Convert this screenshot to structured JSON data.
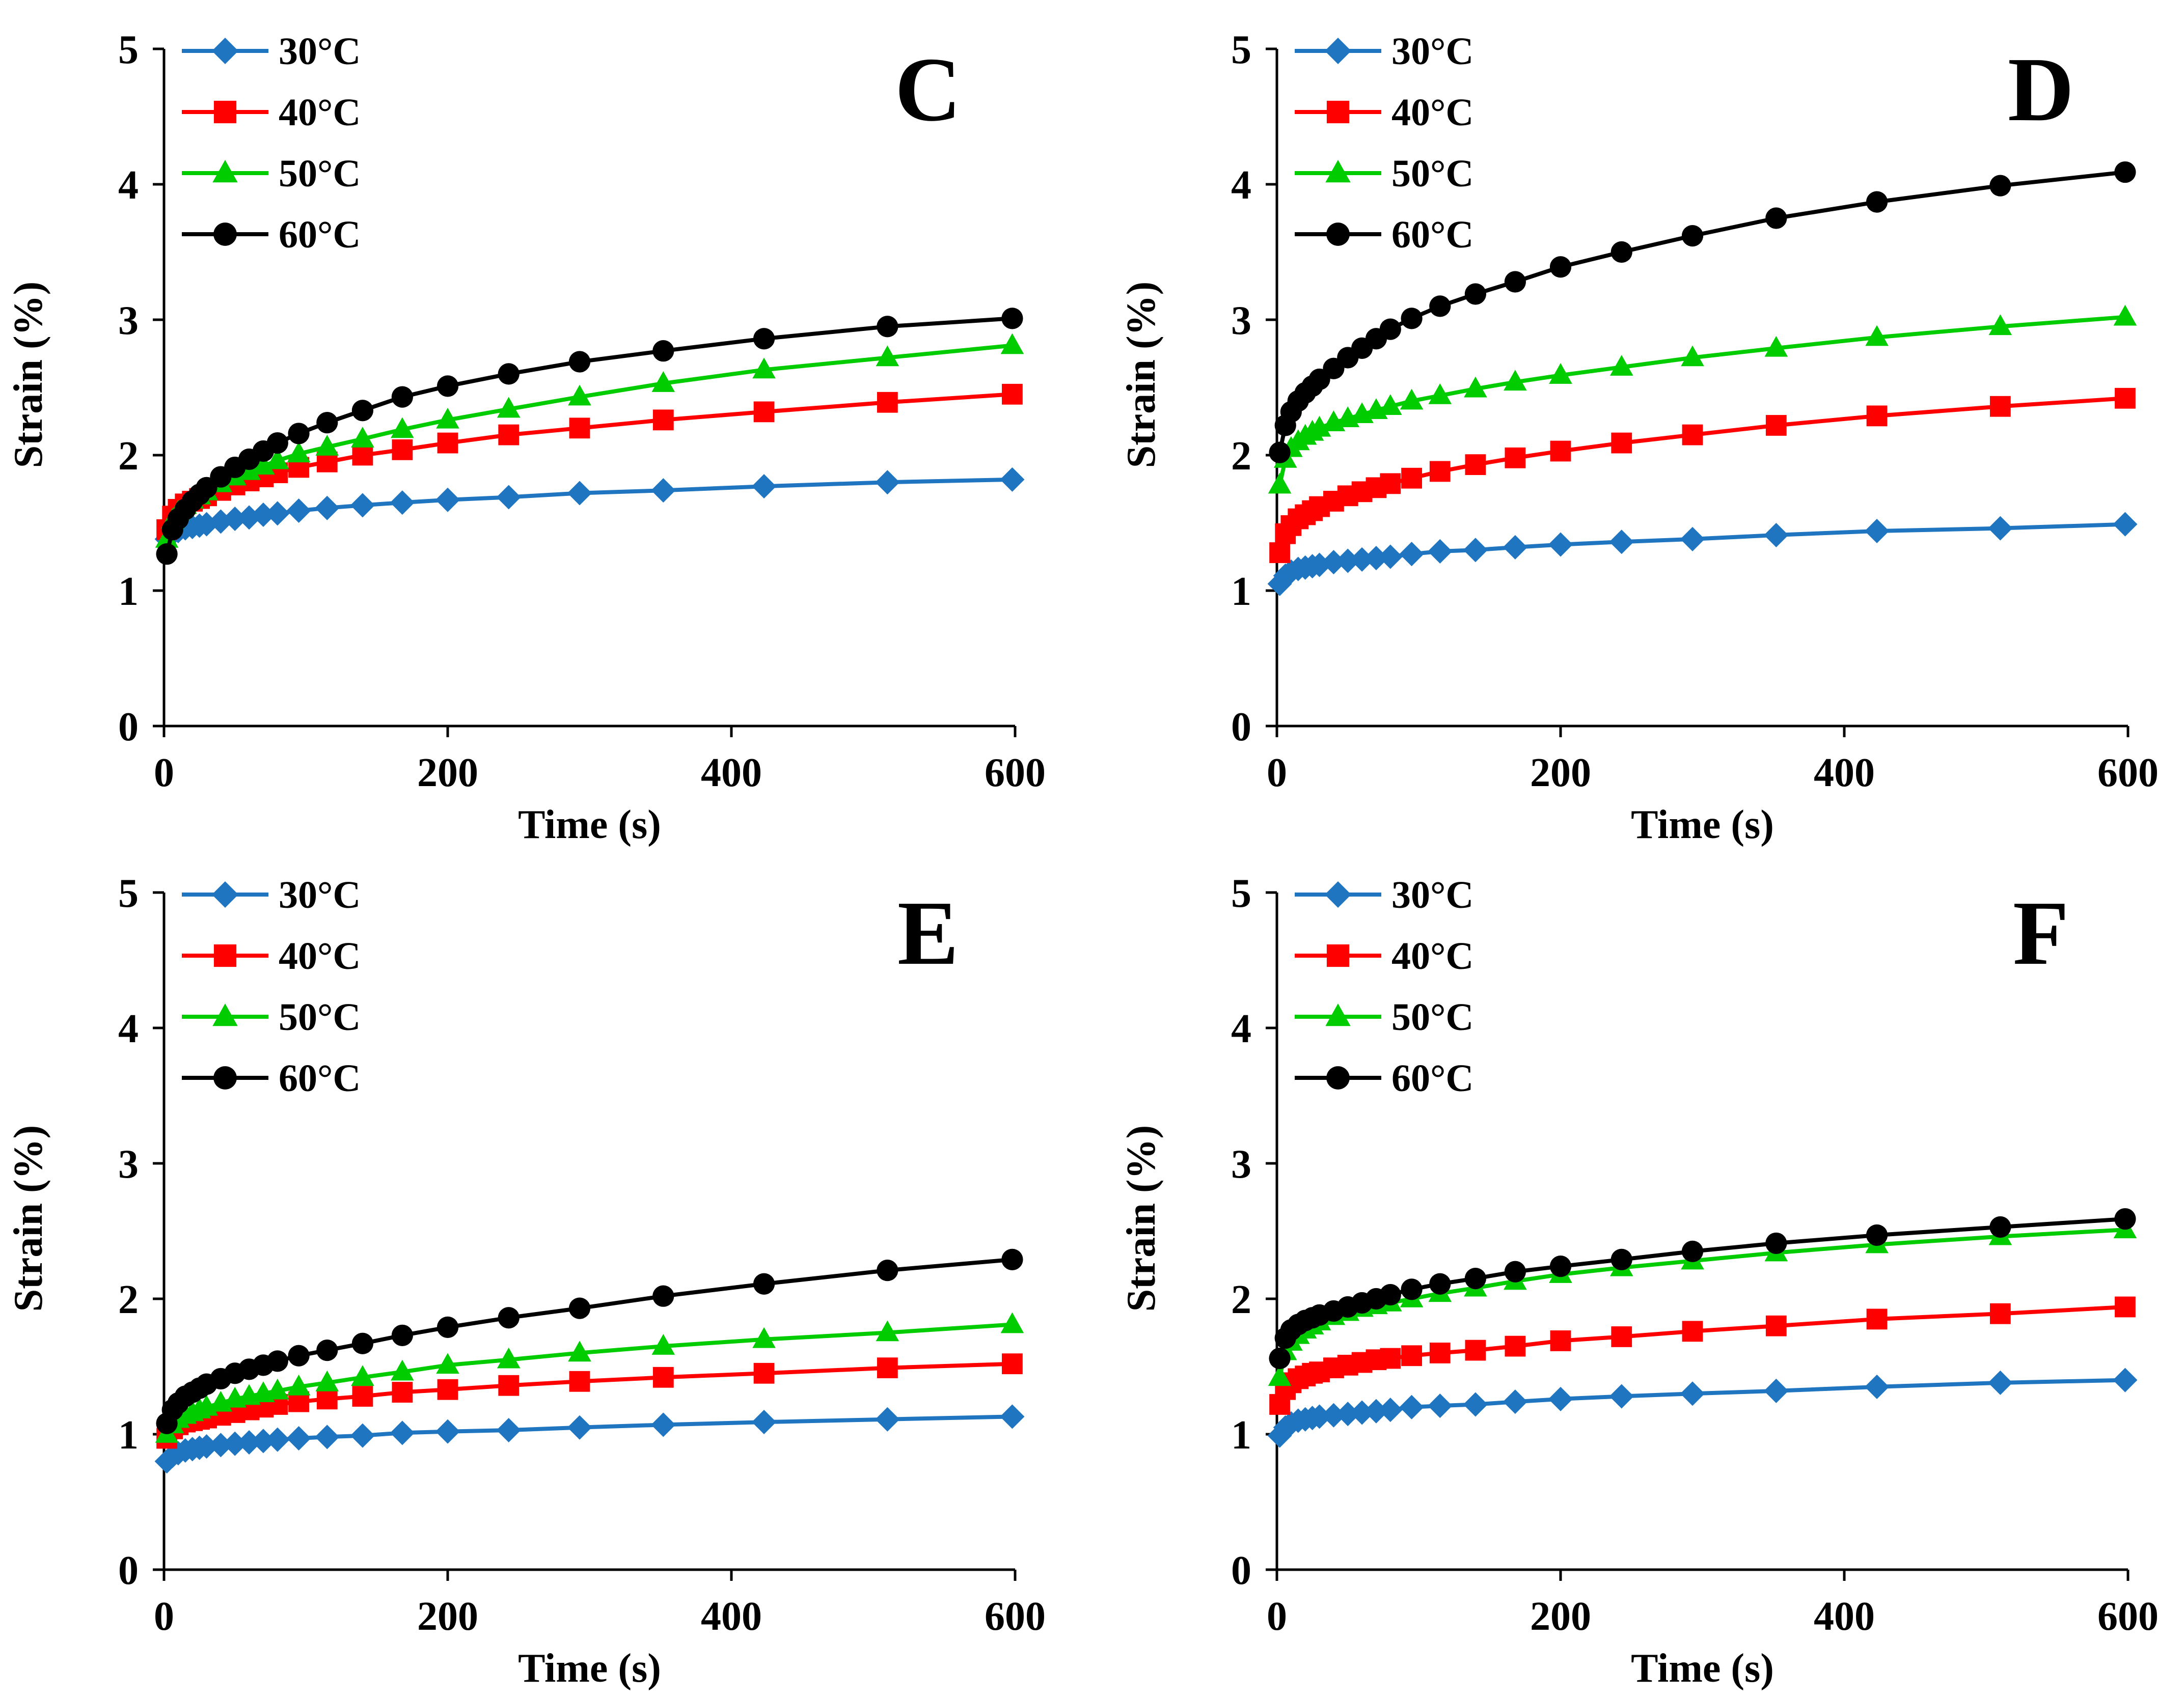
{
  "figure": {
    "legend_labels": [
      "30°C",
      "40°C",
      "50°C",
      "60°C"
    ],
    "series_colors": [
      "#1F75C0",
      "#FF0000",
      "#00CC00",
      "#000000"
    ],
    "marker_shapes": [
      "diamond",
      "square",
      "triangle",
      "circle"
    ]
  },
  "chart_data": [
    {
      "type": "line",
      "title": "C",
      "xlabel": "Time (s)",
      "ylabel": "Strain (%)",
      "xlim": [
        0,
        600
      ],
      "ylim": [
        0,
        5
      ],
      "xticks": [
        0,
        200,
        400,
        600
      ],
      "yticks": [
        0,
        1,
        2,
        3,
        4,
        5
      ],
      "grid": false,
      "legend": "top-left",
      "x": [
        2,
        6,
        10,
        15,
        20,
        25,
        30,
        40,
        50,
        60,
        70,
        80,
        95,
        115,
        140,
        168,
        200,
        243,
        293,
        352,
        423,
        510,
        598
      ],
      "series": [
        {
          "name": "30°C",
          "values": [
            1.38,
            1.42,
            1.44,
            1.46,
            1.47,
            1.48,
            1.49,
            1.51,
            1.53,
            1.54,
            1.56,
            1.57,
            1.59,
            1.61,
            1.63,
            1.65,
            1.67,
            1.69,
            1.72,
            1.74,
            1.77,
            1.8,
            1.82
          ]
        },
        {
          "name": "40°C",
          "values": [
            1.45,
            1.55,
            1.6,
            1.64,
            1.66,
            1.68,
            1.7,
            1.74,
            1.78,
            1.81,
            1.84,
            1.87,
            1.91,
            1.95,
            2.0,
            2.04,
            2.09,
            2.15,
            2.2,
            2.26,
            2.32,
            2.39,
            2.45
          ]
        },
        {
          "name": "50°C",
          "values": [
            1.38,
            1.52,
            1.58,
            1.63,
            1.67,
            1.7,
            1.73,
            1.79,
            1.84,
            1.88,
            1.92,
            1.96,
            2.01,
            2.06,
            2.12,
            2.19,
            2.26,
            2.34,
            2.43,
            2.53,
            2.63,
            2.72,
            2.81
          ]
        },
        {
          "name": "60°C",
          "values": [
            1.27,
            1.45,
            1.53,
            1.6,
            1.66,
            1.71,
            1.76,
            1.84,
            1.91,
            1.97,
            2.03,
            2.09,
            2.16,
            2.24,
            2.33,
            2.43,
            2.51,
            2.6,
            2.69,
            2.77,
            2.86,
            2.95,
            3.01
          ]
        }
      ]
    },
    {
      "type": "line",
      "title": "D",
      "xlabel": "Time (s)",
      "ylabel": "Strain (%)",
      "xlim": [
        0,
        600
      ],
      "ylim": [
        0,
        5
      ],
      "xticks": [
        0,
        200,
        400,
        600
      ],
      "yticks": [
        0,
        1,
        2,
        3,
        4,
        5
      ],
      "grid": false,
      "legend": "top-left",
      "x": [
        2,
        6,
        10,
        15,
        20,
        25,
        30,
        40,
        50,
        60,
        70,
        80,
        95,
        115,
        140,
        168,
        200,
        243,
        293,
        352,
        423,
        510,
        598
      ],
      "series": [
        {
          "name": "30°C",
          "values": [
            1.05,
            1.11,
            1.14,
            1.16,
            1.17,
            1.18,
            1.19,
            1.21,
            1.22,
            1.23,
            1.24,
            1.25,
            1.27,
            1.29,
            1.3,
            1.32,
            1.34,
            1.36,
            1.38,
            1.41,
            1.44,
            1.46,
            1.49
          ]
        },
        {
          "name": "40°C",
          "values": [
            1.28,
            1.42,
            1.48,
            1.53,
            1.56,
            1.59,
            1.62,
            1.66,
            1.7,
            1.73,
            1.76,
            1.79,
            1.83,
            1.88,
            1.93,
            1.98,
            2.03,
            2.09,
            2.15,
            2.22,
            2.29,
            2.36,
            2.42
          ]
        },
        {
          "name": "50°C",
          "values": [
            1.78,
            1.97,
            2.05,
            2.1,
            2.14,
            2.17,
            2.2,
            2.24,
            2.27,
            2.3,
            2.33,
            2.36,
            2.4,
            2.44,
            2.49,
            2.54,
            2.59,
            2.65,
            2.72,
            2.79,
            2.87,
            2.95,
            3.02
          ]
        },
        {
          "name": "60°C",
          "values": [
            2.02,
            2.22,
            2.32,
            2.4,
            2.46,
            2.51,
            2.56,
            2.64,
            2.72,
            2.79,
            2.86,
            2.93,
            3.01,
            3.1,
            3.19,
            3.28,
            3.39,
            3.5,
            3.62,
            3.75,
            3.87,
            3.99,
            4.09
          ]
        }
      ]
    },
    {
      "type": "line",
      "title": "E",
      "xlabel": "Time (s)",
      "ylabel": "Strain (%)",
      "xlim": [
        0,
        600
      ],
      "ylim": [
        0,
        5
      ],
      "xticks": [
        0,
        200,
        400,
        600
      ],
      "yticks": [
        0,
        1,
        2,
        3,
        4,
        5
      ],
      "grid": false,
      "legend": "top-left",
      "x": [
        2,
        6,
        10,
        15,
        20,
        25,
        30,
        40,
        50,
        60,
        70,
        80,
        95,
        115,
        140,
        168,
        200,
        243,
        293,
        352,
        423,
        510,
        598
      ],
      "series": [
        {
          "name": "30°C",
          "values": [
            0.8,
            0.84,
            0.86,
            0.88,
            0.89,
            0.9,
            0.91,
            0.92,
            0.93,
            0.94,
            0.95,
            0.96,
            0.97,
            0.98,
            0.99,
            1.01,
            1.02,
            1.03,
            1.05,
            1.07,
            1.09,
            1.11,
            1.13
          ]
        },
        {
          "name": "40°C",
          "values": [
            0.97,
            1.04,
            1.07,
            1.09,
            1.1,
            1.11,
            1.12,
            1.14,
            1.16,
            1.18,
            1.2,
            1.22,
            1.24,
            1.26,
            1.28,
            1.31,
            1.33,
            1.36,
            1.39,
            1.42,
            1.45,
            1.49,
            1.52
          ]
        },
        {
          "name": "50°C",
          "values": [
            1.0,
            1.07,
            1.11,
            1.14,
            1.16,
            1.18,
            1.2,
            1.23,
            1.26,
            1.28,
            1.3,
            1.32,
            1.35,
            1.38,
            1.42,
            1.46,
            1.51,
            1.55,
            1.6,
            1.65,
            1.7,
            1.75,
            1.81
          ]
        },
        {
          "name": "60°C",
          "values": [
            1.08,
            1.18,
            1.23,
            1.28,
            1.31,
            1.34,
            1.37,
            1.41,
            1.45,
            1.48,
            1.51,
            1.54,
            1.58,
            1.62,
            1.67,
            1.73,
            1.79,
            1.86,
            1.93,
            2.02,
            2.11,
            2.21,
            2.29
          ]
        }
      ]
    },
    {
      "type": "line",
      "title": "F",
      "xlabel": "Time (s)",
      "ylabel": "Strain (%)",
      "xlim": [
        0,
        600
      ],
      "ylim": [
        0,
        5
      ],
      "xticks": [
        0,
        200,
        400,
        600
      ],
      "yticks": [
        0,
        1,
        2,
        3,
        4,
        5
      ],
      "grid": false,
      "legend": "top-left",
      "x": [
        2,
        6,
        10,
        15,
        20,
        25,
        30,
        40,
        50,
        60,
        70,
        80,
        95,
        115,
        140,
        168,
        200,
        243,
        293,
        352,
        423,
        510,
        598
      ],
      "series": [
        {
          "name": "30°C",
          "values": [
            0.99,
            1.05,
            1.08,
            1.1,
            1.11,
            1.12,
            1.13,
            1.14,
            1.15,
            1.16,
            1.17,
            1.18,
            1.2,
            1.21,
            1.22,
            1.24,
            1.26,
            1.28,
            1.3,
            1.32,
            1.35,
            1.38,
            1.4
          ]
        },
        {
          "name": "40°C",
          "values": [
            1.22,
            1.33,
            1.38,
            1.41,
            1.43,
            1.45,
            1.46,
            1.49,
            1.51,
            1.53,
            1.55,
            1.56,
            1.58,
            1.6,
            1.62,
            1.65,
            1.69,
            1.72,
            1.76,
            1.8,
            1.85,
            1.89,
            1.94
          ]
        },
        {
          "name": "50°C",
          "values": [
            1.42,
            1.61,
            1.68,
            1.73,
            1.77,
            1.8,
            1.83,
            1.87,
            1.9,
            1.93,
            1.95,
            1.97,
            2.0,
            2.04,
            2.08,
            2.13,
            2.18,
            2.23,
            2.28,
            2.34,
            2.4,
            2.46,
            2.51
          ]
        },
        {
          "name": "60°C",
          "values": [
            1.56,
            1.71,
            1.77,
            1.81,
            1.84,
            1.86,
            1.88,
            1.91,
            1.94,
            1.97,
            2.0,
            2.03,
            2.07,
            2.11,
            2.15,
            2.2,
            2.24,
            2.29,
            2.35,
            2.41,
            2.47,
            2.53,
            2.59
          ]
        }
      ]
    }
  ]
}
